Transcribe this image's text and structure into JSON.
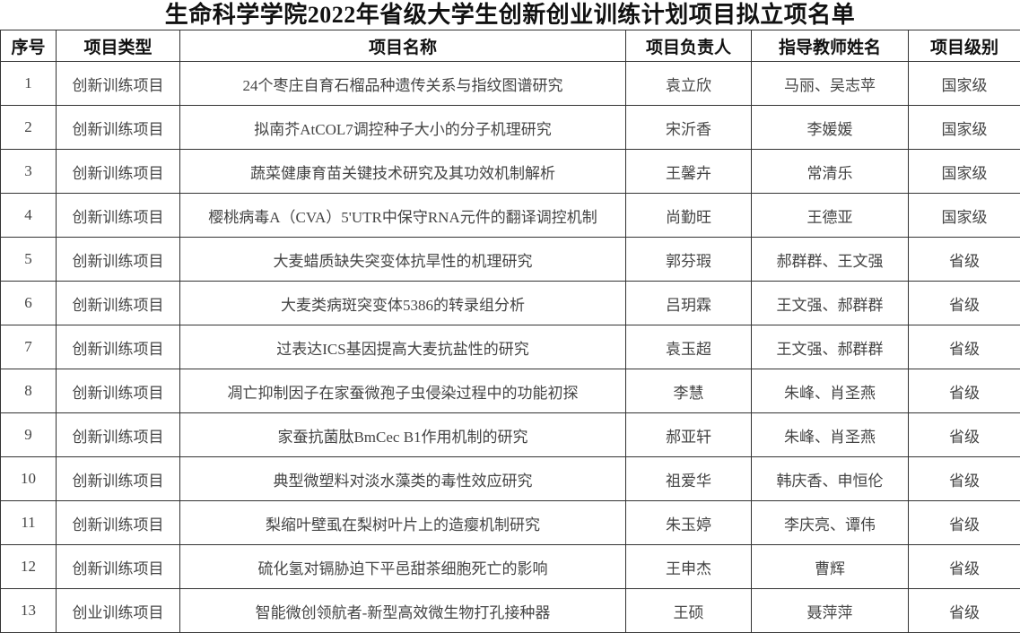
{
  "title": "生命科学学院2022年省级大学生创新创业训练计划项目拟立项名单",
  "headers": [
    "序号",
    "项目类型",
    "项目名称",
    "项目负责人",
    "指导教师姓名",
    "项目级别"
  ],
  "rows": [
    {
      "no": "1",
      "type": "创新训练项目",
      "name": "24个枣庄自育石榴品种遗传关系与指纹图谱研究",
      "leader": "袁立欣",
      "advisor": "马丽、吴志苹",
      "level": "国家级"
    },
    {
      "no": "2",
      "type": "创新训练项目",
      "name": "拟南芥AtCOL7调控种子大小的分子机理研究",
      "leader": "宋沂香",
      "advisor": "李媛媛",
      "level": "国家级"
    },
    {
      "no": "3",
      "type": "创新训练项目",
      "name": "蔬菜健康育苗关键技术研究及其功效机制解析",
      "leader": "王馨卉",
      "advisor": "常清乐",
      "level": "国家级"
    },
    {
      "no": "4",
      "type": "创新训练项目",
      "name": "樱桃病毒A（CVA）5'UTR中保守RNA元件的翻译调控机制",
      "leader": "尚勤旺",
      "advisor": "王德亚",
      "level": "国家级"
    },
    {
      "no": "5",
      "type": "创新训练项目",
      "name": "大麦蜡质缺失突变体抗旱性的机理研究",
      "leader": "郭芬瑕",
      "advisor": "郝群群、王文强",
      "level": "省级"
    },
    {
      "no": "6",
      "type": "创新训练项目",
      "name": "大麦类病斑突变体5386的转录组分析",
      "leader": "吕玥霖",
      "advisor": "王文强、郝群群",
      "level": "省级"
    },
    {
      "no": "7",
      "type": "创新训练项目",
      "name": "过表达ICS基因提高大麦抗盐性的研究",
      "leader": "袁玉超",
      "advisor": "王文强、郝群群",
      "level": "省级"
    },
    {
      "no": "8",
      "type": "创新训练项目",
      "name": "凋亡抑制因子在家蚕微孢子虫侵染过程中的功能初探",
      "leader": "李慧",
      "advisor": "朱峰、肖圣燕",
      "level": "省级"
    },
    {
      "no": "9",
      "type": "创新训练项目",
      "name": "家蚕抗菌肽BmCec B1作用机制的研究",
      "leader": "郝亚轩",
      "advisor": "朱峰、肖圣燕",
      "level": "省级"
    },
    {
      "no": "10",
      "type": "创新训练项目",
      "name": "典型微塑料对淡水藻类的毒性效应研究",
      "leader": "祖爱华",
      "advisor": "韩庆香、申恒伦",
      "level": "省级"
    },
    {
      "no": "11",
      "type": "创新训练项目",
      "name": "梨缩叶壁虱在梨树叶片上的造瘿机制研究",
      "leader": "朱玉婷",
      "advisor": "李庆亮、谭伟",
      "level": "省级"
    },
    {
      "no": "12",
      "type": "创新训练项目",
      "name": "硫化氢对镉胁迫下平邑甜茶细胞死亡的影响",
      "leader": "王申杰",
      "advisor": "曹辉",
      "level": "省级"
    },
    {
      "no": "13",
      "type": "创业训练项目",
      "name": "智能微创领航者-新型高效微生物打孔接种器",
      "leader": "王硕",
      "advisor": "聂萍萍",
      "level": "省级"
    }
  ]
}
